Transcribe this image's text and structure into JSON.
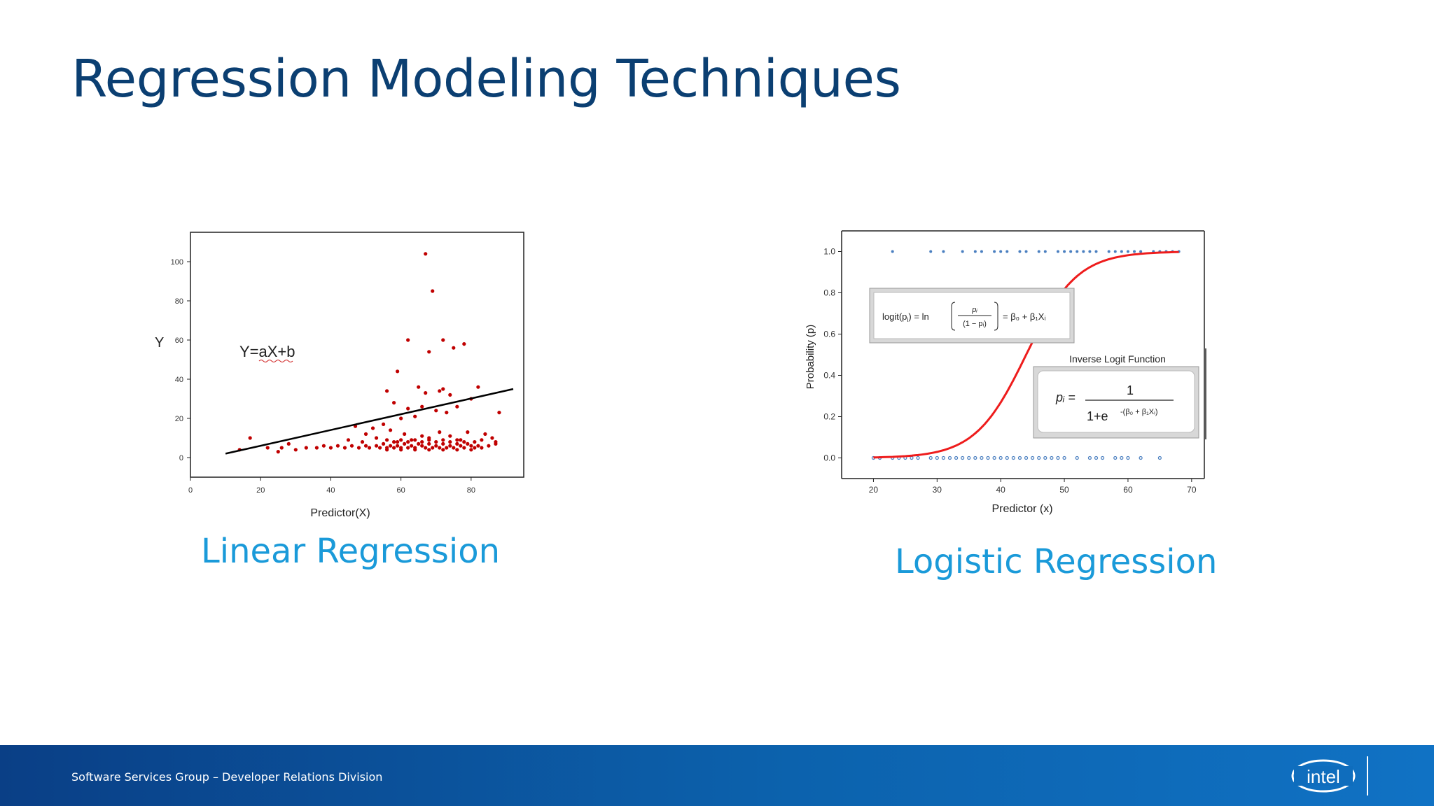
{
  "slide": {
    "title": "Regression Modeling Techniques",
    "footer_text": "Software Services Group – Developer Relations Division",
    "logo_text": "intel",
    "colors": {
      "title": "#0b3f72",
      "caption": "#1a9ad9",
      "footer": "#0c62ad"
    }
  },
  "chart_data": [
    {
      "type": "scatter",
      "caption": "Linear Regression",
      "xlabel": "Predictor(X)",
      "ylabel": "Y",
      "annotation": "Y=aX+b",
      "xlim": [
        0,
        95
      ],
      "ylim": [
        -10,
        115
      ],
      "xticks": [
        0,
        20,
        40,
        60,
        80
      ],
      "yticks": [
        0,
        20,
        40,
        60,
        80,
        100
      ],
      "grid": false,
      "colors": {
        "points": "#c00000",
        "line": "#000000"
      },
      "fit_line": {
        "x": [
          10,
          92
        ],
        "y": [
          2,
          35
        ]
      },
      "points": [
        [
          67,
          104
        ],
        [
          69,
          85
        ],
        [
          62,
          60
        ],
        [
          72,
          60
        ],
        [
          78,
          58
        ],
        [
          75,
          56
        ],
        [
          59,
          44
        ],
        [
          68,
          54
        ],
        [
          65,
          36
        ],
        [
          72,
          35
        ],
        [
          71,
          34
        ],
        [
          67,
          33
        ],
        [
          74,
          32
        ],
        [
          82,
          36
        ],
        [
          80,
          30
        ],
        [
          56,
          34
        ],
        [
          62,
          25
        ],
        [
          58,
          28
        ],
        [
          66,
          26
        ],
        [
          76,
          26
        ],
        [
          70,
          24
        ],
        [
          73,
          23
        ],
        [
          64,
          21
        ],
        [
          60,
          20
        ],
        [
          52,
          15
        ],
        [
          55,
          17
        ],
        [
          50,
          12
        ],
        [
          57,
          14
        ],
        [
          61,
          12
        ],
        [
          68,
          10
        ],
        [
          74,
          11
        ],
        [
          79,
          13
        ],
        [
          84,
          12
        ],
        [
          88,
          23
        ],
        [
          86,
          10
        ],
        [
          47,
          16
        ],
        [
          45,
          9
        ],
        [
          49,
          8
        ],
        [
          53,
          10
        ],
        [
          56,
          9
        ],
        [
          59,
          8
        ],
        [
          63,
          9
        ],
        [
          66,
          11
        ],
        [
          71,
          13
        ],
        [
          77,
          9
        ],
        [
          81,
          8
        ],
        [
          83,
          9
        ],
        [
          87,
          8
        ],
        [
          33,
          5
        ],
        [
          36,
          5
        ],
        [
          38,
          6
        ],
        [
          40,
          5
        ],
        [
          42,
          6
        ],
        [
          44,
          5
        ],
        [
          46,
          6
        ],
        [
          48,
          5
        ],
        [
          50,
          6
        ],
        [
          51,
          5
        ],
        [
          53,
          6
        ],
        [
          54,
          5
        ],
        [
          55,
          7
        ],
        [
          56,
          5
        ],
        [
          57,
          6
        ],
        [
          58,
          5
        ],
        [
          59,
          6
        ],
        [
          60,
          5
        ],
        [
          61,
          7
        ],
        [
          62,
          5
        ],
        [
          63,
          6
        ],
        [
          64,
          5
        ],
        [
          65,
          7
        ],
        [
          66,
          6
        ],
        [
          67,
          5
        ],
        [
          68,
          7
        ],
        [
          69,
          5
        ],
        [
          70,
          6
        ],
        [
          71,
          5
        ],
        [
          72,
          7
        ],
        [
          73,
          5
        ],
        [
          74,
          6
        ],
        [
          75,
          5
        ],
        [
          76,
          7
        ],
        [
          77,
          6
        ],
        [
          78,
          5
        ],
        [
          79,
          7
        ],
        [
          80,
          6
        ],
        [
          81,
          5
        ],
        [
          82,
          6
        ],
        [
          83,
          5
        ],
        [
          85,
          6
        ],
        [
          87,
          7
        ],
        [
          58,
          8
        ],
        [
          60,
          9
        ],
        [
          62,
          8
        ],
        [
          64,
          9
        ],
        [
          66,
          8
        ],
        [
          68,
          9
        ],
        [
          70,
          8
        ],
        [
          72,
          9
        ],
        [
          74,
          8
        ],
        [
          76,
          9
        ],
        [
          78,
          8
        ],
        [
          56,
          4
        ],
        [
          60,
          4
        ],
        [
          64,
          4
        ],
        [
          68,
          4
        ],
        [
          72,
          4
        ],
        [
          76,
          4
        ],
        [
          80,
          4
        ],
        [
          17,
          10
        ],
        [
          14,
          4
        ],
        [
          25,
          3
        ],
        [
          26,
          5
        ],
        [
          28,
          7
        ],
        [
          30,
          4
        ],
        [
          22,
          5
        ]
      ]
    },
    {
      "type": "scatter",
      "caption": "Logistic Regression",
      "xlabel": "Predictor (x)",
      "ylabel": "Probability (p)",
      "xlim": [
        15,
        72
      ],
      "ylim": [
        -0.1,
        1.1
      ],
      "xticks": [
        20,
        30,
        40,
        50,
        60,
        70
      ],
      "yticks": [
        "0.0",
        "0.2",
        "0.4",
        "0.6",
        "0.8",
        "1.0"
      ],
      "grid": false,
      "colors": {
        "points": "#4a7fc0",
        "curve": "#ee1c1c"
      },
      "curve": {
        "beta0": -11,
        "beta1": 0.25,
        "x_range": [
          20,
          68
        ]
      },
      "points_y1_x": [
        23,
        29,
        31,
        34,
        36,
        37,
        39,
        40,
        41,
        43,
        44,
        46,
        47,
        49,
        50,
        51,
        52,
        53,
        54,
        55,
        57,
        58,
        59,
        60,
        61,
        62,
        64,
        65,
        66,
        67,
        68
      ],
      "points_y0_x": [
        20,
        21,
        23,
        24,
        25,
        26,
        27,
        29,
        30,
        31,
        32,
        33,
        34,
        35,
        36,
        37,
        38,
        39,
        40,
        41,
        42,
        43,
        44,
        45,
        46,
        47,
        48,
        49,
        50,
        52,
        54,
        55,
        56,
        58,
        59,
        60,
        62,
        65
      ],
      "equation_box": {
        "lhs": "logit(p",
        "rhs": ") = ln",
        "beta_expr": "= β₀ + β₁Xᵢ",
        "numer": "pᵢ",
        "denom": "(1 − pᵢ)"
      },
      "inverse_box": {
        "label": "Inverse  Logit Function",
        "lhs": "pᵢ =",
        "numerator": "1",
        "denominator": "1+e",
        "exponent": "-(β₀ + β₁Xᵢ)"
      }
    }
  ]
}
